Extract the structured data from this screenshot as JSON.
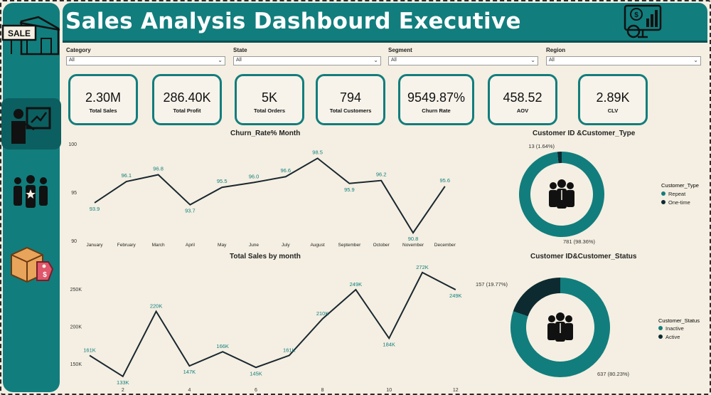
{
  "header": {
    "title": "Sales Analysis Dashbourd Executive"
  },
  "colors": {
    "accent": "#127d7d",
    "dark": "#0d2a30",
    "background": "#f4efe2"
  },
  "sidebar": {
    "logo_text": "SALE",
    "icons": [
      "sale-store-icon",
      "presentation-icon",
      "team-icon",
      "package-tag-icon"
    ]
  },
  "filters": [
    {
      "label": "Category",
      "value": "All"
    },
    {
      "label": "State",
      "value": "All"
    },
    {
      "label": "Segment",
      "value": "All"
    },
    {
      "label": "Region",
      "value": "All"
    }
  ],
  "kpis": [
    {
      "value": "2.30M",
      "label": "Total Sales"
    },
    {
      "value": "286.40K",
      "label": "Total Profit"
    },
    {
      "value": "5K",
      "label": "Total Orders"
    },
    {
      "value": "794",
      "label": "Total Customers"
    },
    {
      "value": "9549.87%",
      "label": "Churn Rate"
    },
    {
      "value": "458.52",
      "label": "AOV"
    },
    {
      "value": "2.89K",
      "label": "CLV"
    }
  ],
  "chart_data": [
    {
      "type": "line",
      "title": "Churn_Rate% Month",
      "categories": [
        "January",
        "February",
        "March",
        "April",
        "May",
        "June",
        "July",
        "August",
        "September",
        "October",
        "November",
        "December"
      ],
      "values": [
        93.9,
        96.1,
        96.8,
        93.7,
        95.5,
        96.0,
        96.6,
        98.5,
        95.9,
        96.2,
        90.8,
        95.6
      ],
      "data_labels": [
        "93.9",
        "96.1",
        "96.8",
        "93.7",
        "95.5",
        "96.0",
        "96.6",
        "98.5",
        "95.9",
        "96.2",
        "90.8",
        "95.6"
      ],
      "yticks": [
        "90",
        "95",
        "100"
      ],
      "ylim": [
        90,
        100
      ],
      "grid": false
    },
    {
      "type": "line",
      "title": "Total Sales by month",
      "x": [
        1,
        2,
        3,
        4,
        5,
        6,
        7,
        8,
        9,
        10,
        11,
        12
      ],
      "values": [
        161,
        133,
        220,
        147,
        166,
        145,
        161,
        210,
        249,
        184,
        272,
        249
      ],
      "data_labels": [
        "161K",
        "133K",
        "220K",
        "147K",
        "166K",
        "145K",
        "161K",
        "210K",
        "249K",
        "184K",
        "272K",
        "249K"
      ],
      "xticks": [
        "2",
        "4",
        "6",
        "8",
        "10",
        "12"
      ],
      "yticks": [
        "150K",
        "200K",
        "250K"
      ],
      "ylim": [
        125,
        275
      ],
      "grid": false
    },
    {
      "type": "pie",
      "title": "Customer ID &Customer_Type",
      "legend_title": "Customer_Type",
      "legend_position": "right",
      "slices": [
        {
          "name": "Repeat",
          "value": 781,
          "label": "781 (98.36%)",
          "color": "#127d7d"
        },
        {
          "name": "One-time",
          "value": 13,
          "label": "13 (1.64%)",
          "color": "#0d2a30"
        }
      ]
    },
    {
      "type": "pie",
      "title": "Customer ID&Customer_Status",
      "legend_title": "Customer_Status",
      "legend_position": "right",
      "slices": [
        {
          "name": "Inactive",
          "value": 637,
          "label": "637 (80.23%)",
          "color": "#127d7d"
        },
        {
          "name": "Active",
          "value": 157,
          "label": "157 (19.77%)",
          "color": "#0d2a30"
        }
      ]
    }
  ]
}
